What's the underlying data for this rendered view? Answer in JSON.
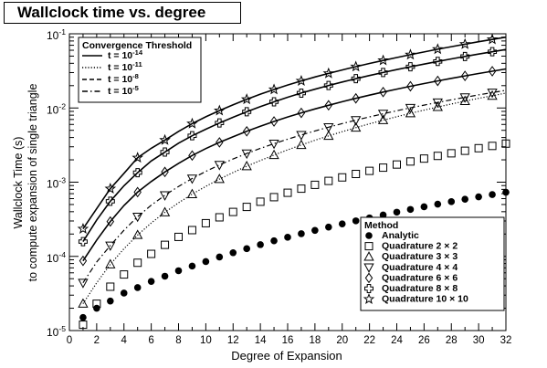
{
  "chart_data": {
    "type": "line",
    "title": "Wallclock time vs. degree",
    "xlabel": "Degree of Expansion",
    "ylabel": [
      "Wallclock Time (s)",
      "to compute expansion of single triangle"
    ],
    "xlim": [
      0,
      32
    ],
    "ylim": [
      1e-05,
      0.1
    ],
    "y_scale": "log",
    "x_ticks": [
      0,
      1,
      2,
      3,
      4,
      5,
      6,
      7,
      8,
      9,
      10,
      11,
      12,
      13,
      14,
      15,
      16,
      17,
      18,
      19,
      20,
      21,
      22,
      23,
      24,
      25,
      26,
      27,
      28,
      29,
      30,
      31,
      32
    ],
    "y_ticks": [
      {
        "value": 1e-05,
        "base": "10",
        "exp": "-5"
      },
      {
        "value": 0.0001,
        "base": "10",
        "exp": "-4"
      },
      {
        "value": 0.001,
        "base": "10",
        "exp": "-3"
      },
      {
        "value": 0.01,
        "base": "10",
        "exp": "-2"
      },
      {
        "value": 0.1,
        "base": "10",
        "exp": "-1"
      }
    ],
    "grid": false,
    "threshold_legend": {
      "title": "Convergence Threshold",
      "placement": "top-left",
      "entries": [
        {
          "label": "t = 10",
          "exp": "-14",
          "style": "solid"
        },
        {
          "label": "t = 10",
          "exp": "-11",
          "style": "dotted"
        },
        {
          "label": "t = 10",
          "exp": "-8",
          "style": "dashed"
        },
        {
          "label": "t = 10",
          "exp": "-5",
          "style": "dashdot"
        }
      ]
    },
    "method_legend": {
      "title": "Method",
      "placement": "bottom-right",
      "entries": [
        {
          "label": "Analytic",
          "marker": "filled-circle"
        },
        {
          "label": "Quadrature 2 × 2",
          "marker": "square"
        },
        {
          "label": "Quadrature 3 × 3",
          "marker": "triangle-up"
        },
        {
          "label": "Quadrature 4 × 4",
          "marker": "triangle-down"
        },
        {
          "label": "Quadrature 6 × 6",
          "marker": "diamond"
        },
        {
          "label": "Quadrature 8 × 8",
          "marker": "cross-square"
        },
        {
          "label": "Quadrature 10 × 10",
          "marker": "star"
        }
      ]
    },
    "x": [
      1,
      2,
      3,
      4,
      5,
      6,
      7,
      8,
      9,
      10,
      11,
      12,
      13,
      14,
      15,
      16,
      17,
      18,
      19,
      20,
      21,
      22,
      23,
      24,
      25,
      26,
      27,
      28,
      29,
      30,
      31,
      32
    ],
    "series": [
      {
        "name": "Analytic",
        "marker": "filled-circle",
        "values": [
          1.5e-05,
          2e-05,
          2.5e-05,
          3.2e-05,
          3.8e-05,
          4.6e-05,
          5.4e-05,
          6.4e-05,
          7.4e-05,
          8.5e-05,
          9.8e-05,
          0.000112,
          0.000127,
          0.000144,
          0.000162,
          0.000181,
          0.000202,
          0.000224,
          0.000248,
          0.000274,
          0.000301,
          0.00033,
          0.000361,
          0.000394,
          0.000429,
          0.000466,
          0.000505,
          0.000546,
          0.000589,
          0.000634,
          0.00068,
          0.00073
        ]
      },
      {
        "name": "Quadrature 2 × 2",
        "marker": "square",
        "values": [
          1.2e-05,
          2.3e-05,
          3.9e-05,
          5.7e-05,
          8.2e-05,
          0.000108,
          0.000143,
          0.000183,
          0.000226,
          0.00028,
          0.000336,
          0.000397,
          0.000464,
          0.000545,
          0.000628,
          0.00072,
          0.000818,
          0.000921,
          0.00104,
          0.00116,
          0.00129,
          0.00142,
          0.00157,
          0.00173,
          0.0019,
          0.00208,
          0.00226,
          0.00245,
          0.00265,
          0.00287,
          0.00308,
          0.00331
        ]
      }
    ],
    "curves": {
      "solid": [
        {
          "name": "Quadrature 10 × 10",
          "marker": "star",
          "values": [
            0.000235,
            0.000441,
            0.000817,
            0.001318,
            0.002135,
            0.002861,
            0.003694,
            0.004836,
            0.006151,
            0.007612,
            0.009213,
            0.011022,
            0.013081,
            0.015346,
            0.017767,
            0.020367,
            0.023166,
            0.026144,
            0.029264,
            0.032564,
            0.036087,
            0.039817,
            0.04374,
            0.047876,
            0.052261,
            0.056941,
            0.061909,
            0.067107,
            0.072493,
            0.078077,
            0.083918,
            0.08993
          ]
        },
        {
          "name": "Quadrature 8 × 8",
          "marker": "cross-square",
          "values": [
            0.000158,
            0.000309,
            0.000553,
            0.000896,
            0.001344,
            0.001931,
            0.002544,
            0.003357,
            0.004221,
            0.005181,
            0.006277,
            0.007509,
            0.008891,
            0.010418,
            0.012119,
            0.013951,
            0.015877,
            0.017925,
            0.02009,
            0.022391,
            0.024812,
            0.027371,
            0.030071,
            0.032917,
            0.035919,
            0.039076,
            0.042386,
            0.045855,
            0.04949,
            0.053289,
            0.057256,
            0.061393
          ]
        },
        {
          "name": "Quadrature 6 × 6",
          "marker": "diamond",
          "values": [
            8.7e-05,
            0.000166,
            0.000295,
            0.000486,
            0.000735,
            0.001021,
            0.001374,
            0.001794,
            0.002286,
            0.002837,
            0.003437,
            0.004104,
            0.004847,
            0.005682,
            0.006585,
            0.007557,
            0.008585,
            0.009694,
            0.010877,
            0.01214,
            0.013479,
            0.014895,
            0.01639,
            0.017964,
            0.019619,
            0.021356,
            0.023174,
            0.025076,
            0.027063,
            0.029136,
            0.031296,
            0.033543
          ]
        },
        {
          "name": "Quadrature 4 × 4",
          "marker": "triangle-down",
          "values": [
            4.4e-05,
            8.4e-05,
            0.00014,
            0.000225,
            0.000343,
            0.000489,
            0.000666,
            0.000876,
            0.00112,
            0.001398,
            0.001709,
            0.002055,
            0.002437,
            0.002855,
            0.00331,
            0.003802,
            0.004333,
            0.004903,
            0.005512,
            0.006161,
            0.006852,
            0.007584,
            0.008358,
            0.009175,
            0.010035,
            0.010939,
            0.011887,
            0.01288,
            0.013919,
            0.015004,
            0.016136,
            0.017315
          ]
        },
        {
          "name": "Quadrature 3 × 3",
          "marker": "triangle-up",
          "values": [
            2.3e-05,
            4.4e-05,
            7.8e-05,
            0.000127,
            0.000194,
            0.000282,
            0.000392,
            0.000527,
            0.000689,
            0.000879,
            0.0011,
            0.00135,
            0.00164,
            0.00196,
            0.00232,
            0.00273,
            0.00317,
            0.00367,
            0.00421,
            0.00479,
            0.00543,
            0.00611,
            0.00685,
            0.00763,
            0.00847,
            0.00936,
            0.0103,
            0.0113,
            0.0124,
            0.0135,
            0.0146,
            0.0159
          ]
        }
      ],
      "dotted_markers_note": ""
    }
  }
}
